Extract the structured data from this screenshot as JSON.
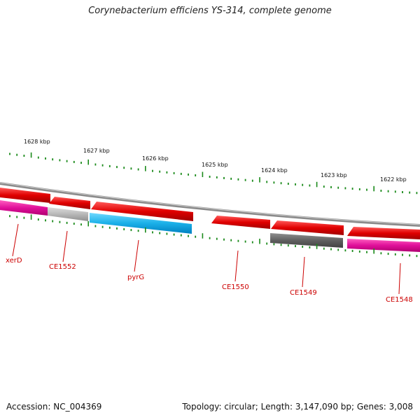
{
  "title": "Corynebacterium efficiens YS-314, complete genome",
  "accession": "Accession: NC_004369",
  "summary": "Topology: circular; Length: 3,147,090 bp; Genes: 3,008",
  "colors": {
    "forward_cds": "#e00000",
    "reverse_magenta": "#e0109a",
    "reverse_cyan": "#1ab0e8",
    "reverse_gray": "#606060",
    "reverse_lightgray": "#b8b8b8",
    "backbone": "#888888",
    "tick": "#1a8a1a",
    "label": "#cc0000"
  },
  "scale_labels": [
    {
      "text": "1628 kbp",
      "kbp": 1628
    },
    {
      "text": "1627 kbp",
      "kbp": 1627
    },
    {
      "text": "1626 kbp",
      "kbp": 1626
    },
    {
      "text": "1625 kbp",
      "kbp": 1625
    },
    {
      "text": "1624 kbp",
      "kbp": 1624
    },
    {
      "text": "1623 kbp",
      "kbp": 1623
    },
    {
      "text": "1622 kbp",
      "kbp": 1622
    }
  ],
  "genes": [
    {
      "label": "xerD",
      "strand": "reverse",
      "color": "magenta"
    },
    {
      "label": "CE1552",
      "strand": "reverse",
      "color": "lightgray"
    },
    {
      "label": "pyrG",
      "strand": "reverse",
      "color": "cyan"
    },
    {
      "label": "CE1550",
      "strand": "forward",
      "color": "red"
    },
    {
      "label": "CE1549",
      "strand": "reverse",
      "color": "gray"
    },
    {
      "label": "CE1548",
      "strand": "reverse",
      "color": "magenta"
    }
  ]
}
